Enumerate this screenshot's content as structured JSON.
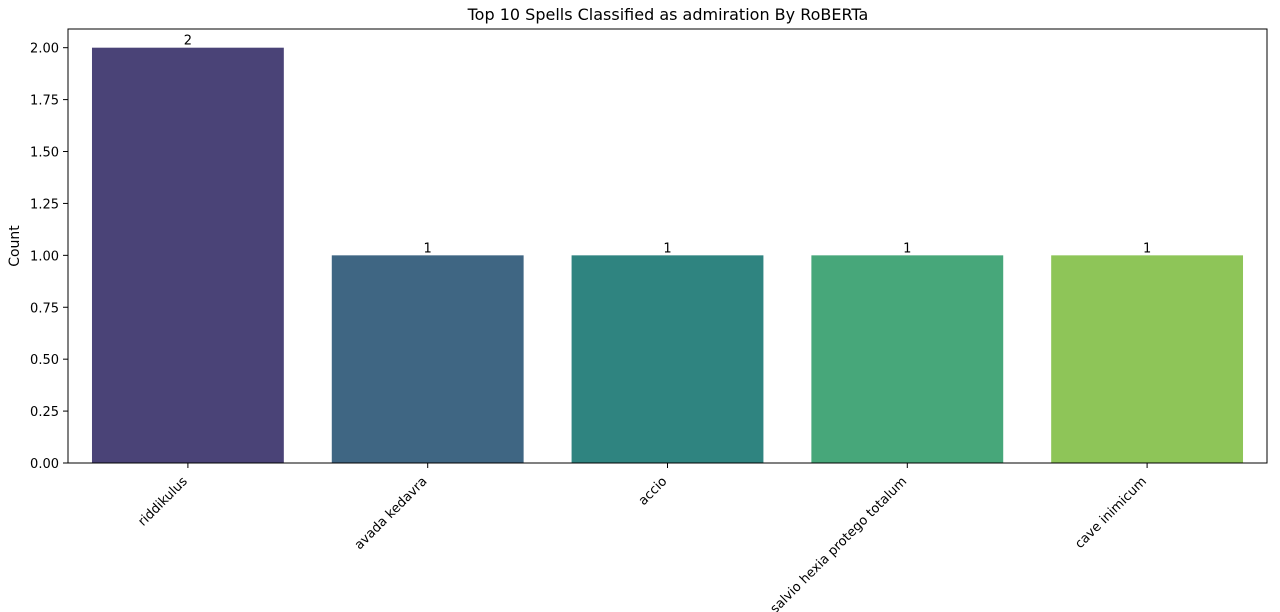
{
  "chart_data": {
    "type": "bar",
    "title": "Top 10 Spells Classified as admiration By RoBERTa",
    "xlabel": "",
    "ylabel": "Count",
    "categories": [
      "riddikulus",
      "avada kedavra",
      "accio",
      "salvio hexia protego totalum",
      "cave inimicum"
    ],
    "values": [
      2,
      1,
      1,
      1,
      1
    ],
    "data_labels": [
      "2",
      "1",
      "1",
      "1",
      "1"
    ],
    "colors": [
      "#4a4377",
      "#3f6683",
      "#2f8480",
      "#47a77a",
      "#8ec558"
    ],
    "ylim": [
      0,
      2.09
    ],
    "yticks": [
      "0.00",
      "0.25",
      "0.50",
      "0.75",
      "1.00",
      "1.25",
      "1.50",
      "1.75",
      "2.00"
    ],
    "grid": false,
    "legend": "none"
  }
}
